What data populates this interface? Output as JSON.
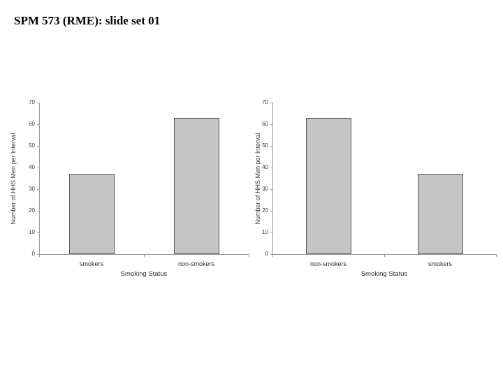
{
  "slide": {
    "title": "SPM 573 (RME): slide set 01"
  },
  "colors": {
    "bar_fill": "#c5c5c5",
    "bar_border": "#5a5a5a",
    "axis": "#9b9b9b",
    "chart_text": "#3a3a3a",
    "title_text": "#000000",
    "background": "#ffffff"
  },
  "chart_data": [
    {
      "type": "bar",
      "title": "",
      "xlabel": "Smoking Status",
      "ylabel": "Number of HHS Men per Interval",
      "categories": [
        "smokers",
        "non-smokers"
      ],
      "values": [
        37,
        63
      ],
      "ylim": [
        0,
        70
      ],
      "yticks": [
        0,
        10,
        20,
        30,
        40,
        50,
        60,
        70
      ],
      "grid": false,
      "legend": "none"
    },
    {
      "type": "bar",
      "title": "",
      "xlabel": "Smoking Status",
      "ylabel": "Number of HHS Men per Interval",
      "categories": [
        "non-smokers",
        "smokers"
      ],
      "values": [
        63,
        37
      ],
      "ylim": [
        0,
        70
      ],
      "yticks": [
        0,
        10,
        20,
        30,
        40,
        50,
        60,
        70
      ],
      "grid": false,
      "legend": "none"
    }
  ]
}
